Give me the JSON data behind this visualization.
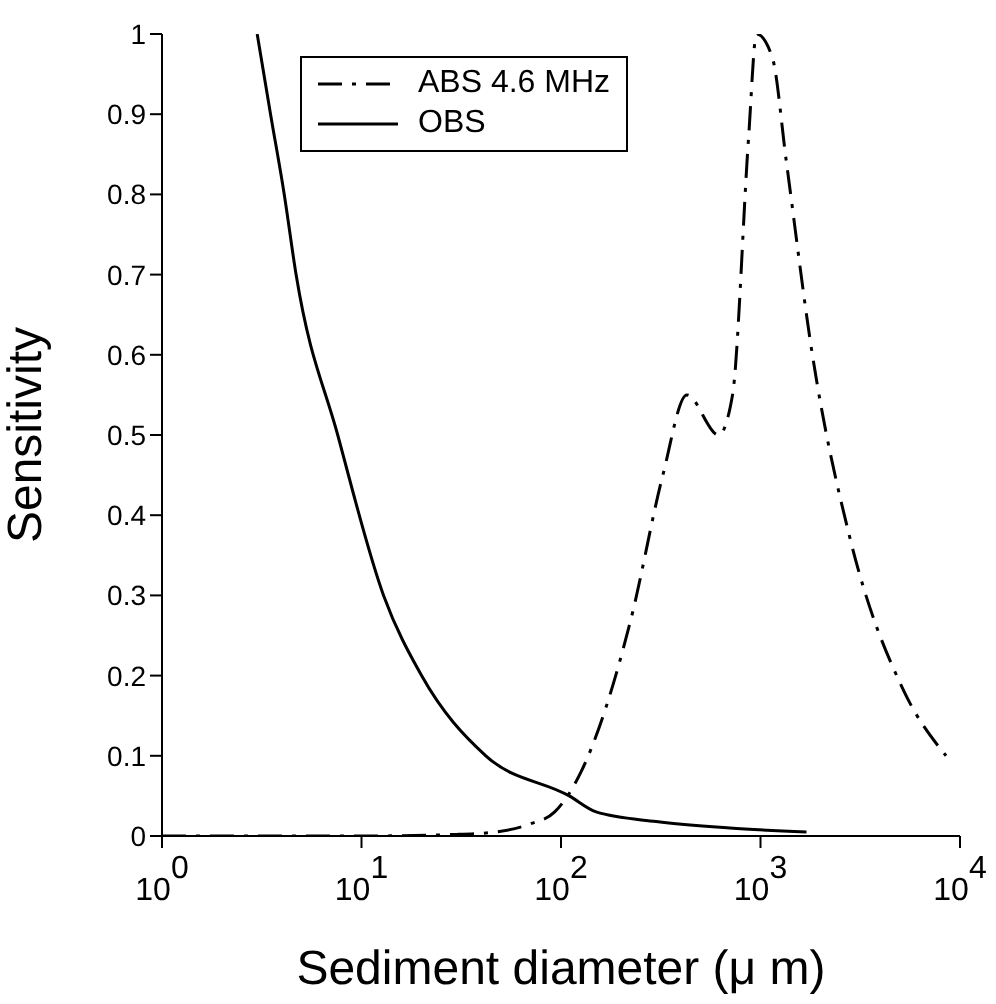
{
  "chart_data": {
    "type": "line",
    "xlabel": "Sediment diameter (μ m)",
    "ylabel": "Sensitivity",
    "log": "x",
    "xlim": [
      1,
      10000
    ],
    "xticks": [
      {
        "value": 1,
        "label": "10$^{0}$"
      },
      {
        "value": 10,
        "label": "10$^{1}$"
      },
      {
        "value": 100,
        "label": "10$^{2}$"
      },
      {
        "value": 1000,
        "label": "10$^{3}$"
      },
      {
        "value": 10000,
        "label": "10$^{4}$"
      }
    ],
    "ylim": [
      0,
      1
    ],
    "yticks": [
      0,
      0.1,
      0.2,
      0.3,
      0.4,
      0.5,
      0.6,
      0.7,
      0.8,
      0.9,
      1
    ],
    "legend": "top",
    "marker": "none",
    "series": [
      {
        "name": "ABS 4.6 MHz",
        "color": "#000000",
        "line_style": "dashed",
        "x": [
          1,
          10,
          30,
          47,
          70,
          93,
          126,
          224,
          324,
          427,
          617,
          724,
          871,
          955,
          1148,
          1349,
          1820,
          2818,
          5248,
          8511
        ],
        "values": [
          0,
          0,
          0.002,
          0.005,
          0.015,
          0.03,
          0.08,
          0.27,
          0.45,
          0.55,
          0.5,
          0.55,
          0.87,
          1.0,
          0.97,
          0.84,
          0.6,
          0.37,
          0.18,
          0.1
        ]
      },
      {
        "name": "OBS",
        "color": "#000000",
        "line_style": "solid",
        "x": [
          3,
          3.5,
          4.1,
          4.7,
          7.6,
          12.9,
          20,
          42,
          110,
          150,
          300,
          700,
          1700
        ],
        "values": [
          1,
          0.9,
          0.8,
          0.7,
          0.5,
          0.3,
          0.2,
          0.1,
          0.05,
          0.03,
          0.018,
          0.01,
          0.005
        ]
      }
    ]
  }
}
